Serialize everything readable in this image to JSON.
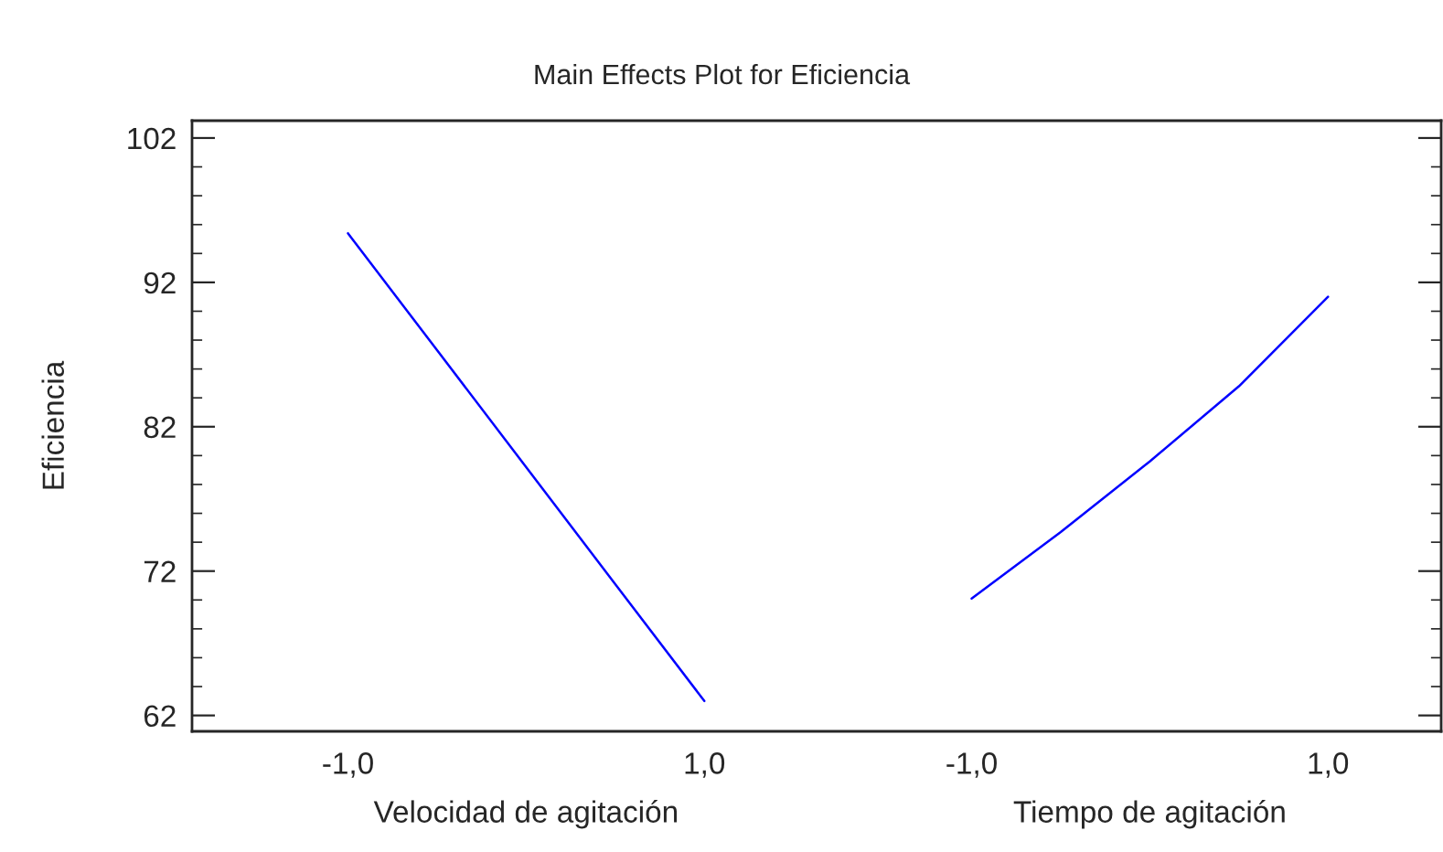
{
  "chart_data": {
    "type": "line",
    "title": "Main Effects Plot for Eficiencia",
    "ylabel": "Eficiencia",
    "annotations": [
      "Velocidad de agitación",
      "Tiempo de agitación"
    ],
    "categories": [
      "-1,0",
      null,
      null,
      null,
      "1,0",
      null,
      null,
      "-1,0",
      null,
      null,
      null,
      "1,0"
    ],
    "series": [
      {
        "color": "#0000ff",
        "values": [
          95.4,
          87.3,
          79.2,
          71.1,
          63.0,
          null,
          null,
          null,
          null,
          null,
          null,
          null
        ]
      },
      {
        "color": "#0000ff",
        "values": [
          null,
          null,
          null,
          null,
          null,
          null,
          null,
          70.1,
          74.7,
          79.6,
          84.8,
          91.0
        ]
      }
    ],
    "ylim": [
      60.9,
      103.2
    ],
    "yticks": [
      62,
      72,
      82,
      92,
      102
    ]
  }
}
